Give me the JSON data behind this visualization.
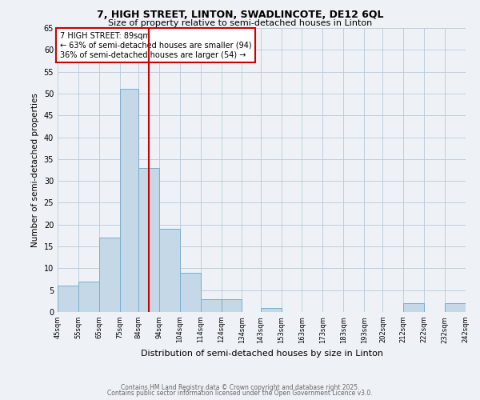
{
  "title1": "7, HIGH STREET, LINTON, SWADLINCOTE, DE12 6QL",
  "title2": "Size of property relative to semi-detached houses in Linton",
  "xlabel": "Distribution of semi-detached houses by size in Linton",
  "ylabel": "Number of semi-detached properties",
  "bins": [
    45,
    55,
    65,
    75,
    84,
    94,
    104,
    114,
    124,
    134,
    143,
    153,
    163,
    173,
    183,
    193,
    202,
    212,
    222,
    232,
    242
  ],
  "counts": [
    6,
    7,
    17,
    51,
    33,
    19,
    9,
    3,
    3,
    0,
    1,
    0,
    0,
    0,
    0,
    0,
    0,
    2,
    0,
    2
  ],
  "bar_color": "#c5d8e8",
  "bar_edge_color": "#7aaecb",
  "property_size": 89,
  "vline_color": "#cc0000",
  "annotation_text": "7 HIGH STREET: 89sqm\n← 63% of semi-detached houses are smaller (94)\n36% of semi-detached houses are larger (54) →",
  "annotation_box_color": "#ffffff",
  "annotation_box_edge": "#cc0000",
  "ylim": [
    0,
    65
  ],
  "yticks": [
    0,
    5,
    10,
    15,
    20,
    25,
    30,
    35,
    40,
    45,
    50,
    55,
    60,
    65
  ],
  "tick_labels": [
    "45sqm",
    "55sqm",
    "65sqm",
    "75sqm",
    "84sqm",
    "94sqm",
    "104sqm",
    "114sqm",
    "124sqm",
    "134sqm",
    "143sqm",
    "153sqm",
    "163sqm",
    "173sqm",
    "183sqm",
    "193sqm",
    "202sqm",
    "212sqm",
    "222sqm",
    "232sqm",
    "242sqm"
  ],
  "footnote1": "Contains HM Land Registry data © Crown copyright and database right 2025.",
  "footnote2": "Contains public sector information licensed under the Open Government Licence v3.0.",
  "background_color": "#eef2f7"
}
